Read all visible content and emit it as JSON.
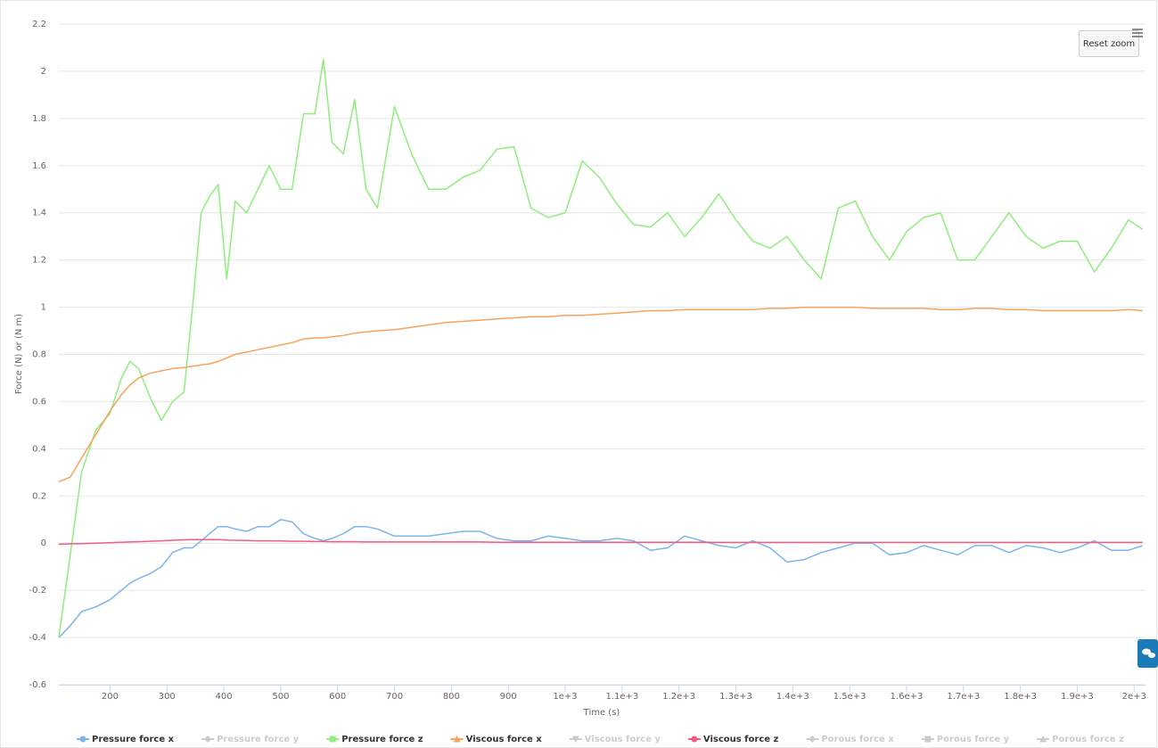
{
  "chart_data": {
    "type": "line",
    "xlabel": "Time (s)",
    "ylabel": "Force (N) or (N m)",
    "xlim": [
      110,
      2020
    ],
    "ylim": [
      -0.6,
      2.2
    ],
    "xticks": [
      200,
      300,
      400,
      500,
      600,
      700,
      800,
      900,
      {
        "value": 1000,
        "label": "1e+3"
      },
      {
        "value": 1100,
        "label": "1.1e+3"
      },
      {
        "value": 1200,
        "label": "1.2e+3"
      },
      {
        "value": 1300,
        "label": "1.3e+3"
      },
      {
        "value": 1400,
        "label": "1.4e+3"
      },
      {
        "value": 1500,
        "label": "1.5e+3"
      },
      {
        "value": 1600,
        "label": "1.6e+3"
      },
      {
        "value": 1700,
        "label": "1.7e+3"
      },
      {
        "value": 1800,
        "label": "1.8e+3"
      },
      {
        "value": 1900,
        "label": "1.9e+3"
      },
      {
        "value": 2000,
        "label": "2e+3"
      }
    ],
    "yticks": [
      -0.6,
      -0.4,
      -0.2,
      0,
      0.2,
      0.4,
      0.6,
      0.8,
      1,
      1.2,
      1.4,
      1.6,
      1.8,
      2,
      2.2
    ],
    "grid": true,
    "legend": "bottom",
    "x": [
      110,
      130,
      150,
      175,
      200,
      220,
      235,
      250,
      270,
      290,
      310,
      330,
      345,
      360,
      375,
      390,
      405,
      420,
      440,
      460,
      480,
      500,
      520,
      540,
      560,
      575,
      590,
      610,
      630,
      650,
      670,
      700,
      730,
      760,
      790,
      820,
      850,
      880,
      910,
      940,
      970,
      1000,
      1030,
      1060,
      1090,
      1120,
      1150,
      1180,
      1210,
      1240,
      1270,
      1300,
      1330,
      1360,
      1390,
      1420,
      1450,
      1480,
      1510,
      1540,
      1570,
      1600,
      1630,
      1660,
      1690,
      1720,
      1750,
      1780,
      1810,
      1840,
      1870,
      1900,
      1930,
      1960,
      1990,
      2015
    ],
    "series": [
      {
        "name": "Pressure force x",
        "color": "#7cb5ec",
        "symbol": "circle",
        "visible": true,
        "values": [
          -0.4,
          -0.35,
          -0.29,
          -0.27,
          -0.24,
          -0.2,
          -0.17,
          -0.15,
          -0.13,
          -0.1,
          -0.04,
          -0.02,
          -0.02,
          0.01,
          0.04,
          0.07,
          0.07,
          0.06,
          0.05,
          0.07,
          0.07,
          0.1,
          0.09,
          0.04,
          0.02,
          0.01,
          0.02,
          0.04,
          0.07,
          0.07,
          0.06,
          0.03,
          0.03,
          0.03,
          0.04,
          0.05,
          0.05,
          0.02,
          0.01,
          0.01,
          0.03,
          0.02,
          0.01,
          0.01,
          0.02,
          0.01,
          -0.03,
          -0.02,
          0.03,
          0.01,
          -0.01,
          -0.02,
          0.01,
          -0.02,
          -0.08,
          -0.07,
          -0.04,
          -0.02,
          0,
          0,
          -0.05,
          -0.04,
          -0.01,
          -0.03,
          -0.05,
          -0.01,
          -0.01,
          -0.04,
          -0.01,
          -0.02,
          -0.04,
          -0.02,
          0.01,
          -0.03,
          -0.03,
          -0.01
        ]
      },
      {
        "name": "Pressure force y",
        "symbol": "diamond",
        "visible": false
      },
      {
        "name": "Pressure force z",
        "color": "#90ed7d",
        "symbol": "square",
        "visible": true,
        "values": [
          -0.4,
          -0.05,
          0.3,
          0.48,
          0.55,
          0.7,
          0.77,
          0.74,
          0.62,
          0.52,
          0.6,
          0.64,
          1.0,
          1.4,
          1.47,
          1.52,
          1.12,
          1.45,
          1.4,
          1.5,
          1.6,
          1.5,
          1.5,
          1.82,
          1.82,
          2.05,
          1.7,
          1.65,
          1.88,
          1.5,
          1.42,
          1.85,
          1.65,
          1.5,
          1.5,
          1.55,
          1.58,
          1.67,
          1.68,
          1.42,
          1.38,
          1.4,
          1.62,
          1.55,
          1.44,
          1.35,
          1.34,
          1.4,
          1.3,
          1.38,
          1.48,
          1.37,
          1.28,
          1.25,
          1.3,
          1.2,
          1.12,
          1.42,
          1.45,
          1.3,
          1.2,
          1.32,
          1.38,
          1.4,
          1.2,
          1.2,
          1.3,
          1.4,
          1.3,
          1.25,
          1.28,
          1.28,
          1.15,
          1.25,
          1.37,
          1.33
        ]
      },
      {
        "name": "Viscous force x",
        "color": "#f7a35c",
        "symbol": "triangle",
        "visible": true,
        "values": [
          0.26,
          0.28,
          0.36,
          0.46,
          0.56,
          0.63,
          0.67,
          0.7,
          0.72,
          0.73,
          0.74,
          0.745,
          0.75,
          0.755,
          0.76,
          0.77,
          0.785,
          0.8,
          0.81,
          0.82,
          0.83,
          0.84,
          0.85,
          0.865,
          0.87,
          0.87,
          0.875,
          0.88,
          0.89,
          0.895,
          0.9,
          0.905,
          0.915,
          0.925,
          0.935,
          0.94,
          0.945,
          0.95,
          0.955,
          0.96,
          0.96,
          0.965,
          0.965,
          0.97,
          0.975,
          0.98,
          0.985,
          0.985,
          0.99,
          0.99,
          0.99,
          0.99,
          0.99,
          0.995,
          0.995,
          1.0,
          1.0,
          1.0,
          1.0,
          0.995,
          0.995,
          0.995,
          0.995,
          0.99,
          0.99,
          0.995,
          0.995,
          0.99,
          0.99,
          0.985,
          0.985,
          0.985,
          0.985,
          0.985,
          0.99,
          0.985
        ]
      },
      {
        "name": "Viscous force y",
        "symbol": "triangle-down",
        "visible": false
      },
      {
        "name": "Viscous force z",
        "color": "#f15c80",
        "symbol": "circle",
        "visible": true,
        "values": [
          -0.005,
          -0.003,
          -0.002,
          0,
          0.002,
          0.004,
          0.005,
          0.006,
          0.008,
          0.01,
          0.012,
          0.014,
          0.015,
          0.015,
          0.015,
          0.015,
          0.013,
          0.012,
          0.011,
          0.01,
          0.01,
          0.009,
          0.008,
          0.008,
          0.007,
          0.007,
          0.006,
          0.006,
          0.006,
          0.005,
          0.005,
          0.005,
          0.005,
          0.005,
          0.005,
          0.005,
          0.005,
          0.004,
          0.004,
          0.004,
          0.004,
          0.004,
          0.004,
          0.004,
          0.004,
          0.004,
          0.004,
          0.004,
          0.004,
          0.004,
          0.003,
          0.003,
          0.003,
          0.003,
          0.003,
          0.003,
          0.003,
          0.003,
          0.003,
          0.003,
          0.003,
          0.003,
          0.003,
          0.003,
          0.003,
          0.003,
          0.003,
          0.003,
          0.003,
          0.003,
          0.003,
          0.003,
          0.003,
          0.003,
          0.003,
          0.003
        ]
      },
      {
        "name": "Porous force x",
        "symbol": "diamond",
        "visible": false
      },
      {
        "name": "Porous force y",
        "symbol": "square",
        "visible": false
      },
      {
        "name": "Porous force z",
        "symbol": "triangle",
        "visible": false
      }
    ]
  },
  "controls": {
    "reset_zoom": "Reset zoom"
  }
}
